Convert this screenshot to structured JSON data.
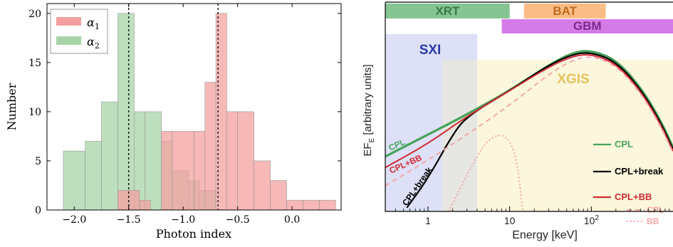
{
  "chart_data": [
    {
      "type": "bar",
      "subtype": "histogram",
      "xlabel": "Photon index",
      "ylabel": "Number",
      "xlim": [
        -2.25,
        0.45
      ],
      "ylim": [
        0,
        21
      ],
      "x_ticks": [
        "−2.0",
        "−1.5",
        "−1.0",
        "−0.5",
        "0.0"
      ],
      "x_tick_values": [
        -2.0,
        -1.5,
        -1.0,
        -0.5,
        0.0
      ],
      "y_ticks": [
        "0",
        "5",
        "10",
        "15",
        "20"
      ],
      "y_tick_values": [
        0,
        5,
        10,
        15,
        20
      ],
      "grid": false,
      "legend_position": "top-left",
      "series": [
        {
          "name": "α1",
          "legend_main": "α",
          "legend_sub": "1",
          "color": "#f4a0a0",
          "bins": [
            {
              "x0": -1.6,
              "x1": -1.4,
              "y": 2
            },
            {
              "x0": -1.4,
              "x1": -1.3,
              "y": 1
            },
            {
              "x0": -1.2,
              "x1": -1.1,
              "y": 8
            },
            {
              "x0": -1.1,
              "x1": -0.9,
              "y": 8
            },
            {
              "x0": -0.9,
              "x1": -0.8,
              "y": 8
            },
            {
              "x0": -0.8,
              "x1": -0.7,
              "y": 13
            },
            {
              "x0": -0.7,
              "x1": -0.6,
              "y": 20
            },
            {
              "x0": -0.6,
              "x1": -0.5,
              "y": 10
            },
            {
              "x0": -0.5,
              "x1": -0.35,
              "y": 10
            },
            {
              "x0": -0.35,
              "x1": -0.2,
              "y": 5
            },
            {
              "x0": -0.2,
              "x1": -0.05,
              "y": 3
            },
            {
              "x0": -0.05,
              "x1": 0.1,
              "y": 1
            },
            {
              "x0": 0.1,
              "x1": 0.25,
              "y": 1
            },
            {
              "x0": 0.25,
              "x1": 0.4,
              "y": 1
            }
          ]
        },
        {
          "name": "α2",
          "legend_main": "α",
          "legend_sub": "2",
          "color": "#a8d4a8",
          "bins": [
            {
              "x0": -2.1,
              "x1": -1.9,
              "y": 6
            },
            {
              "x0": -1.9,
              "x1": -1.75,
              "y": 7
            },
            {
              "x0": -1.75,
              "x1": -1.6,
              "y": 11
            },
            {
              "x0": -1.6,
              "x1": -1.45,
              "y": 20
            },
            {
              "x0": -1.45,
              "x1": -1.35,
              "y": 10
            },
            {
              "x0": -1.35,
              "x1": -1.2,
              "y": 10
            },
            {
              "x0": -1.2,
              "x1": -1.1,
              "y": 7
            },
            {
              "x0": -1.1,
              "x1": -0.95,
              "y": 4
            },
            {
              "x0": -0.95,
              "x1": -0.85,
              "y": 3
            },
            {
              "x0": -0.85,
              "x1": -0.7,
              "y": 2
            }
          ]
        }
      ],
      "vlines": [
        -1.5,
        -0.68
      ]
    },
    {
      "type": "line",
      "xlabel": "Energy [keV]",
      "ylabel": "EF_E [arbitrary units]",
      "ylabel_main": "EF",
      "ylabel_sub": "E",
      "ylabel_rest": " [arbitrary units]",
      "x_scale": "log",
      "xlim": [
        0.3,
        1000
      ],
      "x_ticks": [
        {
          "value": 1,
          "label": "1"
        },
        {
          "value": 10,
          "label": "10"
        },
        {
          "value": 100,
          "label": "10",
          "sup": "2"
        }
      ],
      "y_ticks": [],
      "instruments": [
        {
          "name": "XRT",
          "range_keV": [
            0.3,
            10
          ],
          "color": "#86c493",
          "text_color": "#3b7a47"
        },
        {
          "name": "BAT",
          "range_keV": [
            15,
            150
          ],
          "color": "#fbbc86",
          "text_color": "#c06a1e"
        },
        {
          "name": "GBM",
          "range_keV": [
            8,
            1000
          ],
          "color": "#d57be8",
          "text_color": "#7a2a8a"
        },
        {
          "name": "SXI",
          "range_keV": [
            0.3,
            4
          ],
          "color": "#dde0f7",
          "text_color": "#2b3aa8"
        },
        {
          "name": "XGIS",
          "range_keV": [
            1.5,
            1000
          ],
          "color": "#fbf6dc",
          "text_color": "#e6c25b"
        }
      ],
      "overlap_band_color": "#e6e6e2",
      "series": [
        {
          "name": "CPL",
          "color": "#47a35a",
          "style": "solid",
          "points": [
            [
              0.3,
              30
            ],
            [
              1,
              42
            ],
            [
              3,
              53
            ],
            [
              10,
              66
            ],
            [
              30,
              80
            ],
            [
              60,
              87
            ],
            [
              100,
              88
            ],
            [
              200,
              83
            ],
            [
              400,
              68
            ],
            [
              700,
              50
            ],
            [
              1000,
              35
            ]
          ]
        },
        {
          "name": "CPL+break",
          "color": "#000000",
          "style": "solid",
          "points": [
            [
              0.55,
              2
            ],
            [
              1,
              18
            ],
            [
              2,
              42
            ],
            [
              3,
              52
            ],
            [
              10,
              66
            ],
            [
              30,
              80
            ],
            [
              60,
              86
            ],
            [
              100,
              87
            ],
            [
              200,
              82
            ],
            [
              400,
              67
            ],
            [
              700,
              49
            ],
            [
              1000,
              34
            ]
          ]
        },
        {
          "name": "CPL+BB",
          "color": "#d12c32",
          "style": "solid",
          "points": [
            [
              0.3,
              24
            ],
            [
              1,
              37
            ],
            [
              3,
              52
            ],
            [
              10,
              66
            ],
            [
              30,
              79
            ],
            [
              60,
              85
            ],
            [
              100,
              86
            ],
            [
              200,
              81
            ],
            [
              400,
              66
            ],
            [
              700,
              48
            ],
            [
              1000,
              33
            ]
          ]
        },
        {
          "name": "CPL",
          "color": "#f5a8a8",
          "style": "dashed",
          "points": [
            [
              0.3,
              14
            ],
            [
              1,
              28
            ],
            [
              3,
              42
            ],
            [
              10,
              58
            ],
            [
              30,
              75
            ],
            [
              60,
              83
            ],
            [
              100,
              85
            ],
            [
              200,
              80
            ],
            [
              400,
              65
            ],
            [
              700,
              47
            ],
            [
              1000,
              32
            ]
          ]
        },
        {
          "name": "BB",
          "color": "#f5a8a8",
          "style": "dotted",
          "points": [
            [
              1.8,
              0
            ],
            [
              3,
              20
            ],
            [
              5,
              38
            ],
            [
              8,
              43
            ],
            [
              11,
              36
            ],
            [
              13,
              20
            ],
            [
              14,
              5
            ],
            [
              14.5,
              0
            ]
          ]
        }
      ],
      "annotations": [
        {
          "text": "CPL",
          "color": "#47a35a"
        },
        {
          "text": "CPL+BB",
          "color": "#d12c32"
        },
        {
          "text": "CPL+break",
          "color": "#000000"
        }
      ]
    }
  ]
}
